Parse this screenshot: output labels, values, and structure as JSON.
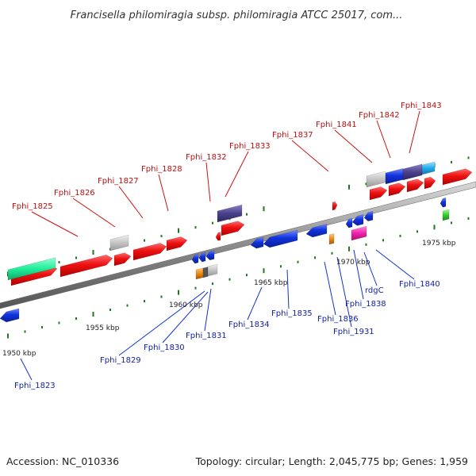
{
  "title": "Francisella philomiragia subsp. philomiragia ATCC 25017, com...",
  "footer": {
    "accession": "Accession: NC_010336",
    "topology": "Topology: circular; Length: 2,045,775 bp; Genes: 1,959"
  },
  "colors": {
    "forward_gene": "#ee1111",
    "reverse_gene": "#1133dd",
    "forward_label": "#bb1111",
    "reverse_label": "#1122aa",
    "backbone": "#888888",
    "tick": "#227722"
  },
  "scale": {
    "ticks": [
      {
        "label": "1950 kbp"
      },
      {
        "label": "1955 kbp"
      },
      {
        "label": "1960 kbp"
      },
      {
        "label": "1965 kbp"
      },
      {
        "label": "1970 kbp"
      },
      {
        "label": "1975 kbp"
      }
    ]
  },
  "forward_labels": [
    "Fphi_1825",
    "Fphi_1826",
    "Fphi_1827",
    "Fphi_1828",
    "Fphi_1832",
    "Fphi_1833",
    "Fphi_1837",
    "Fphi_1841",
    "Fphi_1842",
    "Fphi_1843"
  ],
  "reverse_labels": [
    "Fphi_1823",
    "Fphi_1829",
    "Fphi_1830",
    "Fphi_1831",
    "Fphi_1834",
    "Fphi_1835",
    "Fphi_1836",
    "Fphi_1931",
    "Fphi_1838",
    "rdgC",
    "Fphi_1840"
  ]
}
